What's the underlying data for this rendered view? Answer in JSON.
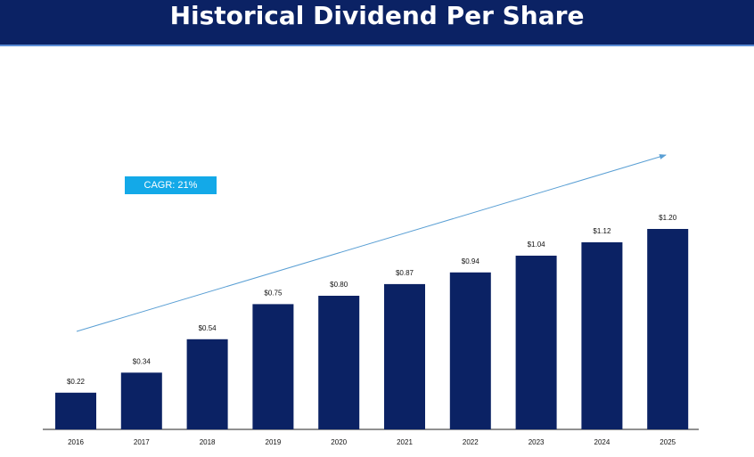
{
  "header": {
    "title": "Historical Dividend Per Share"
  },
  "cagr_label": "CAGR: 21%",
  "colors": {
    "header_bg": "#0b2264",
    "bar": "#0b2264",
    "cagr_bg": "#13a9e8",
    "trend_line": "#5a9fd4"
  },
  "chart_data": {
    "type": "bar",
    "title": "Historical Dividend Per Share",
    "categories": [
      "2016",
      "2017",
      "2018",
      "2019",
      "2020",
      "2021",
      "2022",
      "2023",
      "2024",
      "2025"
    ],
    "values": [
      0.22,
      0.34,
      0.54,
      0.75,
      0.8,
      0.87,
      0.94,
      1.04,
      1.12,
      1.2
    ],
    "value_labels": [
      "$0.22",
      "$0.34",
      "$0.54",
      "$0.75",
      "$0.80",
      "$0.87",
      "$0.94",
      "$1.04",
      "$1.12",
      "$1.20"
    ],
    "xlabel": "",
    "ylabel": "",
    "ylim": [
      0,
      1.2
    ],
    "grid": false,
    "annotations": [
      "CAGR: 21%"
    ]
  }
}
